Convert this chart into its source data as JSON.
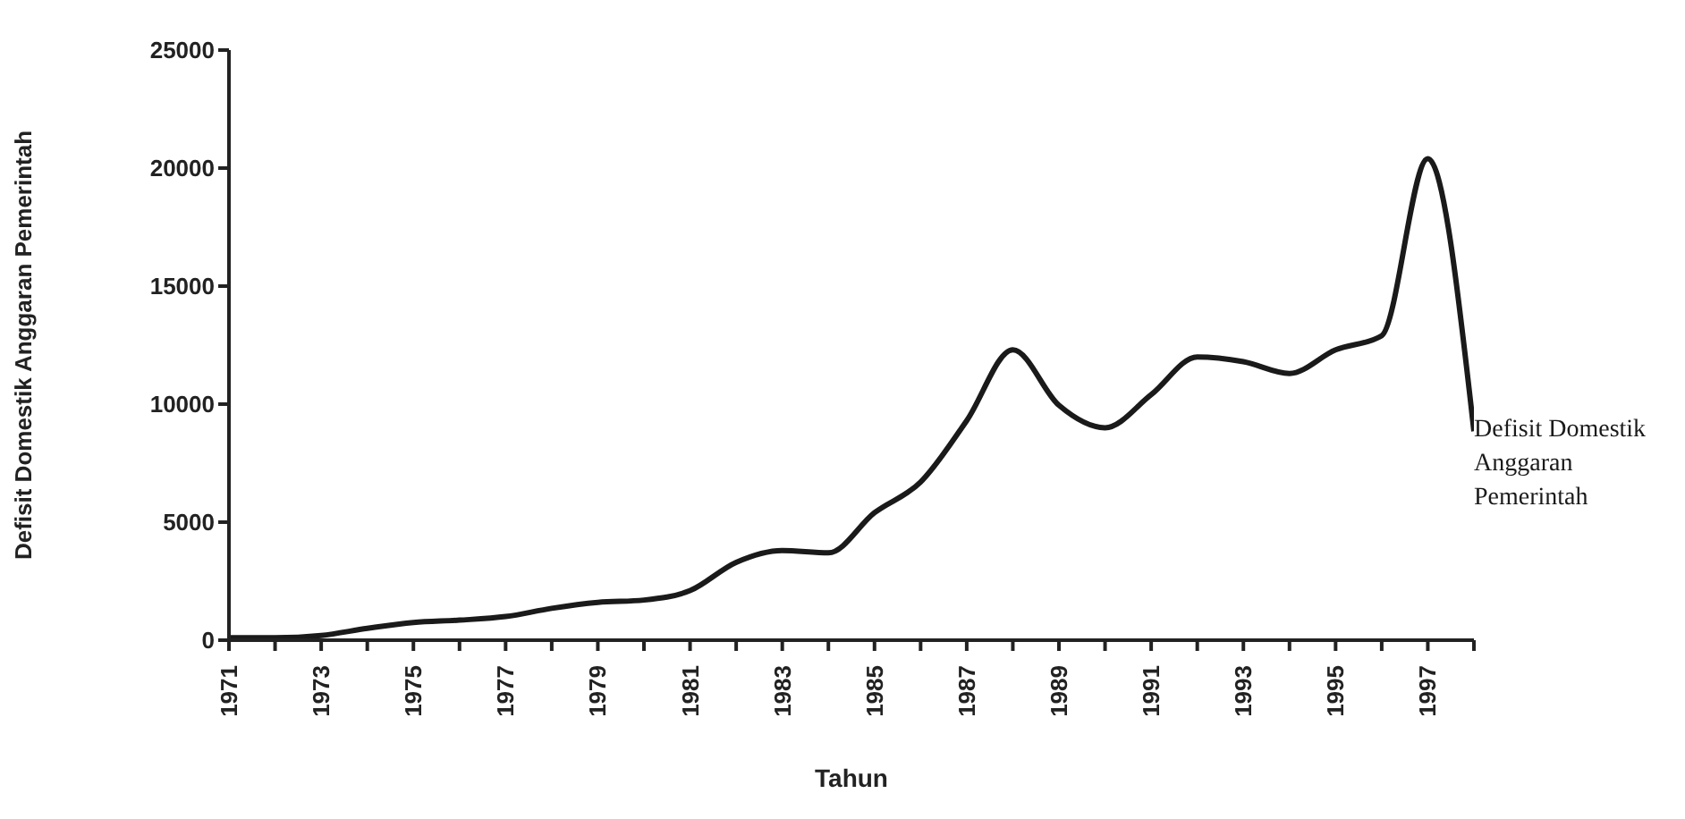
{
  "chart_data": {
    "type": "line",
    "xlabel": "Tahun",
    "ylabel": "Defisit Domestik Anggaran Pemerintah",
    "x": [
      1971,
      1972,
      1973,
      1974,
      1975,
      1976,
      1977,
      1978,
      1979,
      1980,
      1981,
      1982,
      1983,
      1984,
      1985,
      1986,
      1987,
      1988,
      1989,
      1990,
      1991,
      1992,
      1993,
      1994,
      1995,
      1996,
      1997,
      1998
    ],
    "series": [
      {
        "name": "Defisit Domestik Anggaran Pemerintah",
        "color": "#1a1a1a",
        "values": [
          100,
          100,
          200,
          500,
          750,
          850,
          1000,
          1350,
          1600,
          1700,
          2100,
          3300,
          3800,
          3700,
          5400,
          6700,
          9300,
          12300,
          9950,
          9000,
          10400,
          12000,
          11800,
          11300,
          12300,
          12900,
          20400,
          8850
        ]
      }
    ],
    "xlim": [
      1971,
      1998
    ],
    "xticks": [
      1971,
      {
        "value": 1972,
        "label": null
      },
      1973,
      {
        "value": 1974,
        "label": null
      },
      1975,
      {
        "value": 1976,
        "label": null
      },
      1977,
      {
        "value": 1978,
        "label": null
      },
      1979,
      {
        "value": 1980,
        "label": null
      },
      1981,
      {
        "value": 1982,
        "label": null
      },
      1983,
      {
        "value": 1984,
        "label": null
      },
      1985,
      {
        "value": 1986,
        "label": null
      },
      1987,
      {
        "value": 1988,
        "label": null
      },
      1989,
      {
        "value": 1990,
        "label": null
      },
      1991,
      {
        "value": 1992,
        "label": null
      },
      1993,
      {
        "value": 1994,
        "label": null
      },
      1995,
      {
        "value": 1996,
        "label": null
      },
      1997,
      {
        "value": 1998,
        "label": null
      }
    ],
    "ylim": [
      0,
      25000
    ],
    "yticks": [
      0,
      5000,
      10000,
      15000,
      20000,
      25000
    ],
    "grid": false,
    "legend": "right",
    "marker": "none",
    "line_style": "solid"
  }
}
